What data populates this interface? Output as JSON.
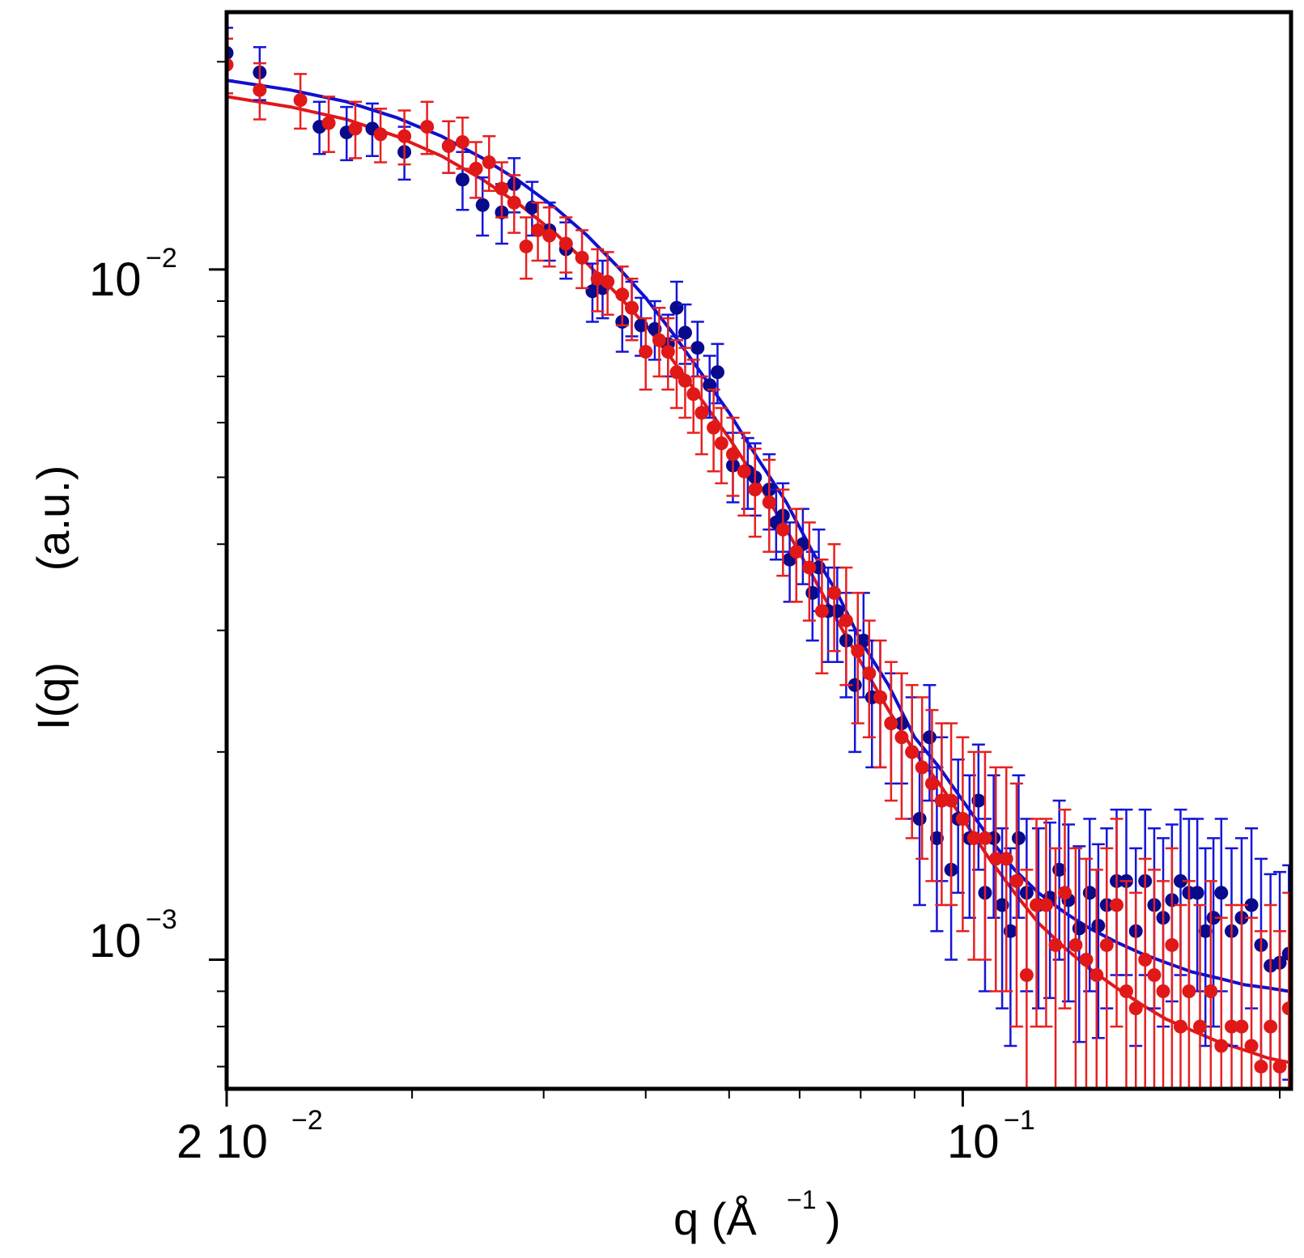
{
  "chart_data": {
    "type": "scatter",
    "title": "",
    "x_scale": "log",
    "y_scale": "log",
    "xlim": [
      0.02,
      0.205
    ],
    "ylim": [
      0.00065,
      0.0236
    ],
    "xlabel": {
      "main": "q (Å",
      "sup": "−1",
      "close": ")"
    },
    "ylabel": {
      "left": "I(q)",
      "right": "(a.u.)"
    },
    "x_tick_labels": [
      {
        "value": 0.02,
        "mantissa": "2 10",
        "exp": "−2"
      },
      {
        "value": 0.1,
        "mantissa": "10",
        "exp": "−1"
      }
    ],
    "y_tick_labels": [
      {
        "value": 0.01,
        "mantissa": "10",
        "exp": "−2"
      },
      {
        "value": 0.001,
        "mantissa": "10",
        "exp": "−3"
      }
    ],
    "legend": null,
    "grid": false,
    "series": [
      {
        "name": "blue data",
        "kind": "points",
        "color": "#0a0a8c",
        "error_color": "#1515d8",
        "x": [
          0.02,
          0.0215,
          0.0245,
          0.026,
          0.0275,
          0.0295,
          0.0325,
          0.0335,
          0.035,
          0.0365,
          0.0375,
          0.039,
          0.0405,
          0.042,
          0.0445,
          0.0455,
          0.0475,
          0.0485,
          0.0495,
          0.051,
          0.0525,
          0.0535,
          0.0545,
          0.056,
          0.0575,
          0.0585,
          0.0605,
          0.0625,
          0.0635,
          0.0655,
          0.0665,
          0.0675,
          0.0685,
          0.0705,
          0.072,
          0.073,
          0.0745,
          0.076,
          0.0775,
          0.079,
          0.0805,
          0.082,
          0.0835,
          0.0855,
          0.0875,
          0.0895,
          0.091,
          0.093,
          0.0945,
          0.0955,
          0.0975,
          0.099,
          0.1015,
          0.1035,
          0.105,
          0.107,
          0.109,
          0.111,
          0.113,
          0.115,
          0.118,
          0.121,
          0.1235,
          0.126,
          0.129,
          0.132,
          0.1345,
          0.137,
          0.14,
          0.143,
          0.146,
          0.149,
          0.152,
          0.155,
          0.158,
          0.161,
          0.164,
          0.167,
          0.17,
          0.173,
          0.176,
          0.18,
          0.184,
          0.188,
          0.192,
          0.196,
          0.2,
          0.204
        ],
        "y": [
          0.0206,
          0.0193,
          0.0161,
          0.0158,
          0.016,
          0.0148,
          0.0151,
          0.0135,
          0.0124,
          0.0121,
          0.0133,
          0.0123,
          0.0114,
          0.0107,
          0.0093,
          0.0094,
          0.0084,
          0.0088,
          0.0083,
          0.0082,
          0.0078,
          0.0088,
          0.0081,
          0.0077,
          0.0068,
          0.0071,
          0.0052,
          0.0051,
          0.005,
          0.0048,
          0.0043,
          0.0044,
          0.0038,
          0.004,
          0.0034,
          0.0037,
          0.0032,
          0.0032,
          0.0029,
          0.0025,
          0.0029,
          0.0024,
          0.0024,
          0.0022,
          0.0022,
          0.002,
          0.0016,
          0.0021,
          0.0015,
          0.0017,
          0.00135,
          0.0016,
          0.0015,
          0.0017,
          0.00125,
          0.0015,
          0.0012,
          0.0011,
          0.0015,
          0.00125,
          0.0012,
          0.00123,
          0.00135,
          0.00122,
          0.00111,
          0.00125,
          0.00112,
          0.0012,
          0.0013,
          0.0013,
          0.0011,
          0.0013,
          0.0012,
          0.00115,
          0.00122,
          0.0013,
          0.00125,
          0.00125,
          0.0011,
          0.00115,
          0.00125,
          0.0011,
          0.00115,
          0.0012,
          0.00105,
          0.00098,
          0.00099,
          0.00102
        ],
        "y_err": [
          0.0018,
          0.0017,
          0.0014,
          0.0014,
          0.0014,
          0.0013,
          0.0013,
          0.0013,
          0.0012,
          0.0012,
          0.0012,
          0.0011,
          0.0011,
          0.001,
          0.0009,
          0.0009,
          0.0008,
          0.0008,
          0.0008,
          0.0008,
          0.0008,
          0.0008,
          0.0008,
          0.0007,
          0.0007,
          0.0007,
          0.0006,
          0.0006,
          0.0006,
          0.0006,
          0.0005,
          0.0005,
          0.0005,
          0.0005,
          0.0005,
          0.0005,
          0.0005,
          0.0005,
          0.0005,
          0.0005,
          0.0005,
          0.0005,
          0.0005,
          0.0004,
          0.0004,
          0.0004,
          0.0004,
          0.0004,
          0.0004,
          0.0004,
          0.00035,
          0.00035,
          0.00035,
          0.00035,
          0.00035,
          0.00035,
          0.00035,
          0.00035,
          0.00035,
          0.00035,
          0.00035,
          0.00035,
          0.00035,
          0.00035,
          0.00035,
          0.00035,
          0.00035,
          0.00035,
          0.00035,
          0.00035,
          0.00035,
          0.00035,
          0.00035,
          0.00035,
          0.00035,
          0.00035,
          0.00035,
          0.00035,
          0.00035,
          0.00035,
          0.00035,
          0.00035,
          0.00035,
          0.00035,
          0.00035,
          0.00035,
          0.00035,
          0.00035
        ]
      },
      {
        "name": "red data",
        "kind": "points",
        "color": "#e01818",
        "error_color": "#e82020",
        "x": [
          0.02,
          0.0215,
          0.0235,
          0.025,
          0.0265,
          0.028,
          0.0295,
          0.031,
          0.0325,
          0.0335,
          0.0345,
          0.0355,
          0.0365,
          0.0375,
          0.0385,
          0.0395,
          0.0405,
          0.042,
          0.0435,
          0.045,
          0.046,
          0.0475,
          0.0485,
          0.05,
          0.0515,
          0.0525,
          0.0535,
          0.0545,
          0.0555,
          0.0565,
          0.058,
          0.059,
          0.0605,
          0.062,
          0.0635,
          0.0655,
          0.0675,
          0.0695,
          0.0715,
          0.0735,
          0.0755,
          0.0775,
          0.0795,
          0.0815,
          0.0835,
          0.0855,
          0.0875,
          0.0895,
          0.0915,
          0.0935,
          0.0955,
          0.0975,
          0.1,
          0.1025,
          0.105,
          0.1075,
          0.11,
          0.1125,
          0.115,
          0.1175,
          0.12,
          0.1225,
          0.125,
          0.128,
          0.131,
          0.134,
          0.137,
          0.14,
          0.143,
          0.146,
          0.149,
          0.152,
          0.155,
          0.158,
          0.161,
          0.164,
          0.168,
          0.172,
          0.176,
          0.18,
          0.184,
          0.188,
          0.192,
          0.196,
          0.2,
          0.204
        ],
        "y": [
          0.0198,
          0.0182,
          0.0176,
          0.0163,
          0.016,
          0.0157,
          0.0156,
          0.0161,
          0.0151,
          0.0153,
          0.014,
          0.0143,
          0.0131,
          0.0125,
          0.0108,
          0.0114,
          0.0112,
          0.0109,
          0.0104,
          0.0097,
          0.0096,
          0.0092,
          0.0088,
          0.0076,
          0.0079,
          0.0076,
          0.0071,
          0.0069,
          0.0066,
          0.0062,
          0.0059,
          0.0056,
          0.0054,
          0.0051,
          0.0048,
          0.0046,
          0.0042,
          0.0039,
          0.0037,
          0.0032,
          0.0034,
          0.0031,
          0.0028,
          0.0026,
          0.0024,
          0.0022,
          0.0021,
          0.002,
          0.0019,
          0.0018,
          0.0017,
          0.0017,
          0.0016,
          0.0015,
          0.0015,
          0.0014,
          0.0014,
          0.0013,
          0.00095,
          0.0012,
          0.0012,
          0.00105,
          0.00125,
          0.00105,
          0.001,
          0.00095,
          0.00105,
          0.0012,
          0.0009,
          0.00085,
          0.001,
          0.00095,
          0.0009,
          0.00105,
          0.0008,
          0.0009,
          0.0008,
          0.0009,
          0.00075,
          0.0008,
          0.0008,
          0.00075,
          0.0007,
          0.0008,
          0.0007,
          0.00085
        ],
        "y_err": [
          0.0018,
          0.0017,
          0.0016,
          0.0015,
          0.0015,
          0.0014,
          0.0014,
          0.0014,
          0.0013,
          0.0013,
          0.0013,
          0.0013,
          0.0012,
          0.0012,
          0.0011,
          0.0011,
          0.0011,
          0.001,
          0.001,
          0.001,
          0.001,
          0.0009,
          0.0009,
          0.0009,
          0.0009,
          0.0009,
          0.0008,
          0.0008,
          0.0008,
          0.0008,
          0.0008,
          0.0007,
          0.0007,
          0.0007,
          0.0007,
          0.0007,
          0.0006,
          0.0006,
          0.0006,
          0.0006,
          0.0006,
          0.0006,
          0.0006,
          0.0005,
          0.0005,
          0.0005,
          0.0005,
          0.0005,
          0.0005,
          0.0005,
          0.0005,
          0.0005,
          0.0005,
          0.0005,
          0.0005,
          0.0005,
          0.0005,
          0.0005,
          0.0004,
          0.0004,
          0.0004,
          0.0004,
          0.0004,
          0.0004,
          0.0004,
          0.0004,
          0.0004,
          0.0004,
          0.0004,
          0.0004,
          0.0004,
          0.0004,
          0.0004,
          0.0004,
          0.0004,
          0.0004,
          0.0004,
          0.0004,
          0.0004,
          0.0004,
          0.0004,
          0.0004,
          0.0004,
          0.0004,
          0.0004,
          0.0004
        ]
      },
      {
        "name": "blue fit",
        "kind": "line",
        "color": "#1010d0",
        "x": [
          0.02,
          0.023,
          0.026,
          0.029,
          0.032,
          0.035,
          0.038,
          0.041,
          0.044,
          0.047,
          0.05,
          0.053,
          0.056,
          0.06,
          0.064,
          0.068,
          0.072,
          0.076,
          0.08,
          0.085,
          0.09,
          0.095,
          0.1,
          0.106,
          0.112,
          0.118,
          0.125,
          0.132,
          0.14,
          0.148,
          0.156,
          0.165,
          0.175,
          0.185,
          0.195,
          0.204
        ],
        "y": [
          0.0188,
          0.0182,
          0.0175,
          0.0166,
          0.0156,
          0.0145,
          0.0134,
          0.0123,
          0.0112,
          0.0101,
          0.0091,
          0.0081,
          0.0072,
          0.0062,
          0.0053,
          0.0046,
          0.0039,
          0.0034,
          0.0029,
          0.0025,
          0.0021,
          0.0019,
          0.0017,
          0.0015,
          0.00135,
          0.00125,
          0.00117,
          0.00111,
          0.00106,
          0.00102,
          0.00099,
          0.00096,
          0.00094,
          0.00092,
          0.00091,
          0.0009
        ]
      },
      {
        "name": "red fit",
        "kind": "line",
        "color": "#e01818",
        "x": [
          0.02,
          0.023,
          0.026,
          0.029,
          0.032,
          0.035,
          0.038,
          0.041,
          0.044,
          0.047,
          0.05,
          0.053,
          0.056,
          0.06,
          0.064,
          0.068,
          0.072,
          0.076,
          0.08,
          0.085,
          0.09,
          0.095,
          0.1,
          0.106,
          0.112,
          0.118,
          0.125,
          0.132,
          0.14,
          0.148,
          0.156,
          0.165,
          0.175,
          0.185,
          0.195,
          0.204
        ],
        "y": [
          0.0178,
          0.0172,
          0.0165,
          0.0156,
          0.0146,
          0.0135,
          0.0124,
          0.0113,
          0.0102,
          0.0092,
          0.0083,
          0.0074,
          0.0066,
          0.0057,
          0.0049,
          0.0042,
          0.0036,
          0.0031,
          0.0027,
          0.0023,
          0.002,
          0.0018,
          0.0016,
          0.0014,
          0.00125,
          0.00113,
          0.00104,
          0.00097,
          0.00091,
          0.00086,
          0.00082,
          0.00079,
          0.00076,
          0.00074,
          0.00072,
          0.00071
        ]
      }
    ]
  }
}
